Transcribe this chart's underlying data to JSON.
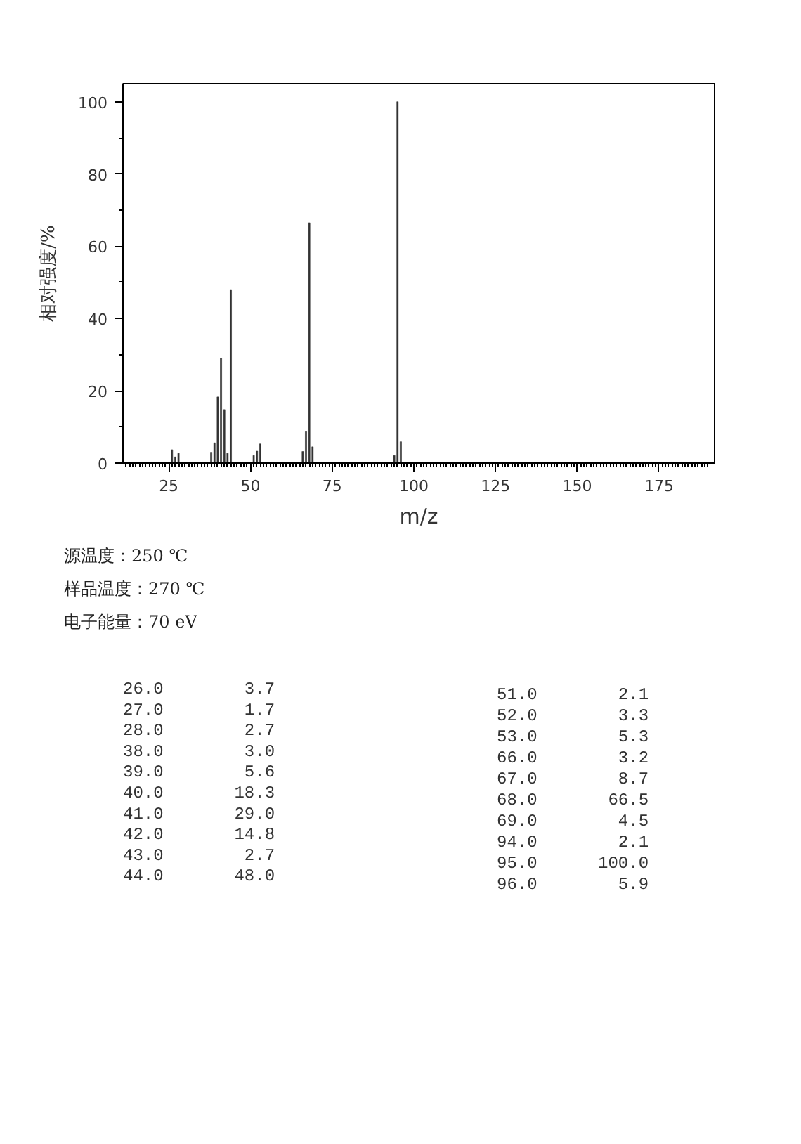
{
  "chart_data": [
    {
      "type": "bar",
      "xlabel": "m/z",
      "ylabel": "相对强度/%",
      "annotations": [
        "源温度：250 ℃",
        "样品温度：270 ℃",
        "电子能量：70 eV"
      ],
      "x": [
        26,
        27,
        28,
        38,
        39,
        40,
        41,
        42,
        43,
        44,
        51,
        52,
        53,
        66,
        67,
        68,
        69,
        94,
        95,
        96
      ],
      "values": [
        3.7,
        1.7,
        2.7,
        3.0,
        5.6,
        18.3,
        29.0,
        14.8,
        2.7,
        48.0,
        2.1,
        3.3,
        5.3,
        3.2,
        8.7,
        66.5,
        4.5,
        2.1,
        100.0,
        5.9
      ],
      "color": "#333333",
      "xlim": [
        11,
        192
      ],
      "ylim": [
        0,
        105
      ],
      "xticks": [
        {
          "value": 12,
          "label": null
        },
        {
          "value": 13,
          "label": null
        },
        {
          "value": 14,
          "label": null
        },
        {
          "value": 15,
          "label": null
        },
        {
          "value": 16,
          "label": null
        },
        {
          "value": 17,
          "label": null
        },
        {
          "value": 18,
          "label": null
        },
        {
          "value": 19,
          "label": null
        },
        {
          "value": 20,
          "label": null
        },
        {
          "value": 21,
          "label": null
        },
        {
          "value": 22,
          "label": null
        },
        {
          "value": 23,
          "label": null
        },
        {
          "value": 24,
          "label": null
        },
        25,
        {
          "value": 26,
          "label": null
        },
        {
          "value": 27,
          "label": null
        },
        {
          "value": 28,
          "label": null
        },
        {
          "value": 29,
          "label": null
        },
        {
          "value": 30,
          "label": null
        },
        {
          "value": 31,
          "label": null
        },
        {
          "value": 32,
          "label": null
        },
        {
          "value": 33,
          "label": null
        },
        {
          "value": 34,
          "label": null
        },
        {
          "value": 35,
          "label": null
        },
        {
          "value": 36,
          "label": null
        },
        {
          "value": 37,
          "label": null
        },
        {
          "value": 38,
          "label": null
        },
        {
          "value": 39,
          "label": null
        },
        {
          "value": 40,
          "label": null
        },
        {
          "value": 41,
          "label": null
        },
        {
          "value": 42,
          "label": null
        },
        {
          "value": 43,
          "label": null
        },
        {
          "value": 44,
          "label": null
        },
        {
          "value": 45,
          "label": null
        },
        {
          "value": 46,
          "label": null
        },
        {
          "value": 47,
          "label": null
        },
        {
          "value": 48,
          "label": null
        },
        {
          "value": 49,
          "label": null
        },
        50,
        {
          "value": 51,
          "label": null
        },
        {
          "value": 52,
          "label": null
        },
        {
          "value": 53,
          "label": null
        },
        {
          "value": 54,
          "label": null
        },
        {
          "value": 55,
          "label": null
        },
        {
          "value": 56,
          "label": null
        },
        {
          "value": 57,
          "label": null
        },
        {
          "value": 58,
          "label": null
        },
        {
          "value": 59,
          "label": null
        },
        {
          "value": 60,
          "label": null
        },
        {
          "value": 61,
          "label": null
        },
        {
          "value": 62,
          "label": null
        },
        {
          "value": 63,
          "label": null
        },
        {
          "value": 64,
          "label": null
        },
        {
          "value": 65,
          "label": null
        },
        {
          "value": 66,
          "label": null
        },
        {
          "value": 67,
          "label": null
        },
        {
          "value": 68,
          "label": null
        },
        {
          "value": 69,
          "label": null
        },
        {
          "value": 70,
          "label": null
        },
        {
          "value": 71,
          "label": null
        },
        {
          "value": 72,
          "label": null
        },
        {
          "value": 73,
          "label": null
        },
        {
          "value": 74,
          "label": null
        },
        75,
        {
          "value": 76,
          "label": null
        },
        {
          "value": 77,
          "label": null
        },
        {
          "value": 78,
          "label": null
        },
        {
          "value": 79,
          "label": null
        },
        {
          "value": 80,
          "label": null
        },
        {
          "value": 81,
          "label": null
        },
        {
          "value": 82,
          "label": null
        },
        {
          "value": 83,
          "label": null
        },
        {
          "value": 84,
          "label": null
        },
        {
          "value": 85,
          "label": null
        },
        {
          "value": 86,
          "label": null
        },
        {
          "value": 87,
          "label": null
        },
        {
          "value": 88,
          "label": null
        },
        {
          "value": 89,
          "label": null
        },
        {
          "value": 90,
          "label": null
        },
        {
          "value": 91,
          "label": null
        },
        {
          "value": 92,
          "label": null
        },
        {
          "value": 93,
          "label": null
        },
        {
          "value": 94,
          "label": null
        },
        {
          "value": 95,
          "label": null
        },
        {
          "value": 96,
          "label": null
        },
        {
          "value": 97,
          "label": null
        },
        {
          "value": 98,
          "label": null
        },
        {
          "value": 99,
          "label": null
        },
        100,
        {
          "value": 101,
          "label": null
        },
        {
          "value": 102,
          "label": null
        },
        {
          "value": 103,
          "label": null
        },
        {
          "value": 104,
          "label": null
        },
        {
          "value": 105,
          "label": null
        },
        {
          "value": 106,
          "label": null
        },
        {
          "value": 107,
          "label": null
        },
        {
          "value": 108,
          "label": null
        },
        {
          "value": 109,
          "label": null
        },
        {
          "value": 110,
          "label": null
        },
        {
          "value": 111,
          "label": null
        },
        {
          "value": 112,
          "label": null
        },
        {
          "value": 113,
          "label": null
        },
        {
          "value": 114,
          "label": null
        },
        {
          "value": 115,
          "label": null
        },
        {
          "value": 116,
          "label": null
        },
        {
          "value": 117,
          "label": null
        },
        {
          "value": 118,
          "label": null
        },
        {
          "value": 119,
          "label": null
        },
        {
          "value": 120,
          "label": null
        },
        {
          "value": 121,
          "label": null
        },
        {
          "value": 122,
          "label": null
        },
        {
          "value": 123,
          "label": null
        },
        {
          "value": 124,
          "label": null
        },
        125,
        {
          "value": 126,
          "label": null
        },
        {
          "value": 127,
          "label": null
        },
        {
          "value": 128,
          "label": null
        },
        {
          "value": 129,
          "label": null
        },
        {
          "value": 130,
          "label": null
        },
        {
          "value": 131,
          "label": null
        },
        {
          "value": 132,
          "label": null
        },
        {
          "value": 133,
          "label": null
        },
        {
          "value": 134,
          "label": null
        },
        {
          "value": 135,
          "label": null
        },
        {
          "value": 136,
          "label": null
        },
        {
          "value": 137,
          "label": null
        },
        {
          "value": 138,
          "label": null
        },
        {
          "value": 139,
          "label": null
        },
        {
          "value": 140,
          "label": null
        },
        {
          "value": 141,
          "label": null
        },
        {
          "value": 142,
          "label": null
        },
        {
          "value": 143,
          "label": null
        },
        {
          "value": 144,
          "label": null
        },
        {
          "value": 145,
          "label": null
        },
        {
          "value": 146,
          "label": null
        },
        {
          "value": 147,
          "label": null
        },
        {
          "value": 148,
          "label": null
        },
        {
          "value": 149,
          "label": null
        },
        150,
        {
          "value": 151,
          "label": null
        },
        {
          "value": 152,
          "label": null
        },
        {
          "value": 153,
          "label": null
        },
        {
          "value": 154,
          "label": null
        },
        {
          "value": 155,
          "label": null
        },
        {
          "value": 156,
          "label": null
        },
        {
          "value": 157,
          "label": null
        },
        {
          "value": 158,
          "label": null
        },
        {
          "value": 159,
          "label": null
        },
        {
          "value": 160,
          "label": null
        },
        {
          "value": 161,
          "label": null
        },
        {
          "value": 162,
          "label": null
        },
        {
          "value": 163,
          "label": null
        },
        {
          "value": 164,
          "label": null
        },
        {
          "value": 165,
          "label": null
        },
        {
          "value": 166,
          "label": null
        },
        {
          "value": 167,
          "label": null
        },
        {
          "value": 168,
          "label": null
        },
        {
          "value": 169,
          "label": null
        },
        {
          "value": 170,
          "label": null
        },
        {
          "value": 171,
          "label": null
        },
        {
          "value": 172,
          "label": null
        },
        {
          "value": 173,
          "label": null
        },
        {
          "value": 174,
          "label": null
        },
        175,
        {
          "value": 176,
          "label": null
        },
        {
          "value": 177,
          "label": null
        },
        {
          "value": 178,
          "label": null
        },
        {
          "value": 179,
          "label": null
        },
        {
          "value": 180,
          "label": null
        },
        {
          "value": 181,
          "label": null
        },
        {
          "value": 182,
          "label": null
        },
        {
          "value": 183,
          "label": null
        },
        {
          "value": 184,
          "label": null
        },
        {
          "value": 185,
          "label": null
        },
        {
          "value": 186,
          "label": null
        },
        {
          "value": 187,
          "label": null
        },
        {
          "value": 188,
          "label": null
        },
        {
          "value": 189,
          "label": null
        },
        {
          "value": 190,
          "label": null
        }
      ],
      "yticks": [
        0,
        {
          "value": 10,
          "label": null
        },
        20,
        {
          "value": 30,
          "label": null
        },
        40,
        {
          "value": 50,
          "label": null
        },
        60,
        {
          "value": 70,
          "label": null
        },
        80,
        {
          "value": 90,
          "label": null
        },
        100
      ]
    },
    {
      "type": "other",
      "annotations": [
        "26.0 3.7",
        "27.0 1.7",
        "28.0 2.7",
        "38.0 3.0",
        "39.0 5.6",
        "40.0 18.3",
        "41.0 29.0",
        "42.0 14.8",
        "43.0 2.7",
        "44.0 48.0",
        "51.0 2.1",
        "52.0 3.3",
        "53.0 5.3",
        "66.0 3.2",
        "67.0 8.7",
        "68.0 66.5",
        "69.0 4.5",
        "94.0 2.1",
        "95.0 100.0",
        "96.0 5.9"
      ]
    }
  ]
}
